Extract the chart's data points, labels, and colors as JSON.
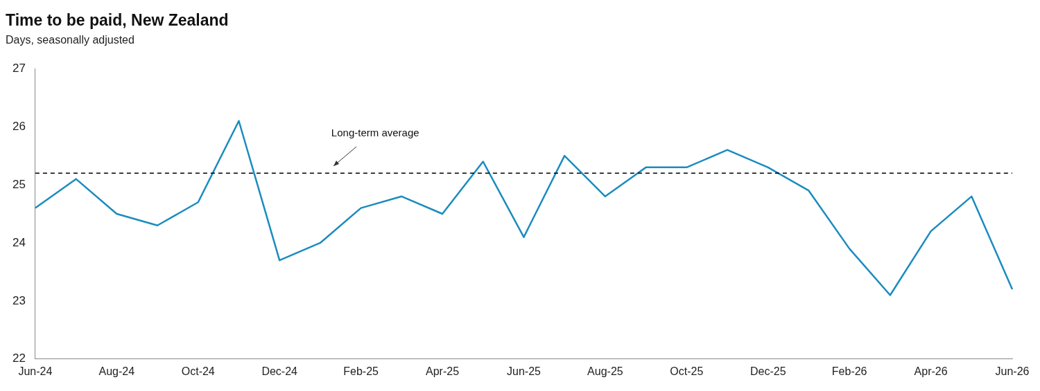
{
  "chart_data": {
    "type": "line",
    "title": "Time to be paid, New Zealand",
    "subtitle": "Days, seasonally adjusted",
    "categories": [
      "Jun-24",
      null,
      "Aug-24",
      null,
      "Oct-24",
      null,
      "Dec-24",
      null,
      "Feb-25",
      null,
      "Apr-25",
      null,
      "Jun-25",
      null,
      "Aug-25",
      null,
      "Oct-25",
      null,
      "Dec-25",
      null,
      "Feb-26",
      null,
      "Apr-26",
      null,
      "Jun-26"
    ],
    "series": [
      {
        "color": "#1a8bbf",
        "values": [
          24.6,
          25.1,
          24.5,
          24.3,
          24.7,
          26.1,
          23.7,
          24.0,
          24.6,
          24.8,
          24.5,
          25.4,
          24.1,
          25.5,
          24.8,
          25.3,
          25.3,
          25.6,
          25.3,
          24.9,
          23.9,
          23.1,
          24.2,
          24.8,
          23.2
        ]
      }
    ],
    "ylim": [
      22,
      27
    ],
    "yticks": [
      22,
      23,
      24,
      25,
      26,
      27
    ],
    "grid": false,
    "legend": false,
    "marker": "none",
    "line_style": "solid",
    "ref_lines": [
      {
        "axis": "y",
        "value": 25.2,
        "label": "Long-term average",
        "color": "#000000",
        "line_style": "dashed"
      }
    ]
  }
}
